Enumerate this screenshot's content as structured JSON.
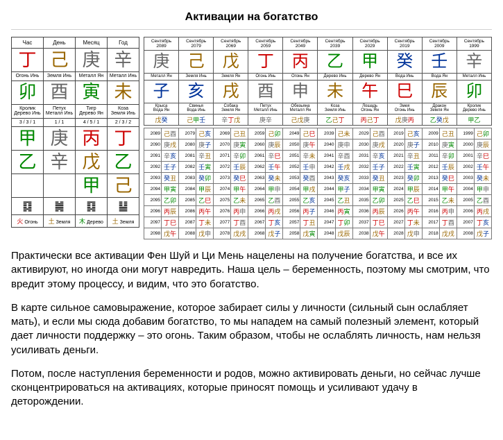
{
  "title": "Активации на богатство",
  "colors": {
    "fire": "#cc0000",
    "earth": "#996600",
    "metal": "#666666",
    "water": "#003399",
    "wood": "#008800",
    "purple": "#8800aa"
  },
  "bazi": {
    "headers": [
      "Час",
      "День",
      "Месяц",
      "Год"
    ],
    "row_stem": {
      "chars": [
        "丁",
        "己",
        "庚",
        "辛"
      ],
      "cols": [
        "fire",
        "earth",
        "metal",
        "metal"
      ]
    },
    "row_stem_lbl": [
      "Огонь Инь",
      "Земля Инь",
      "Металл Ян",
      "Металл Инь"
    ],
    "row_branch": {
      "chars": [
        "卯",
        "酉",
        "寅",
        "未"
      ],
      "cols": [
        "wood",
        "metal",
        "wood",
        "earth"
      ]
    },
    "row_branch_lbl": [
      "Кролик\nДерево Инь",
      "Петух\nМеталл Инь",
      "Тигр\nДерево Ян",
      "Коза\nЗемля Инь"
    ],
    "row_frac": [
      "3 / 3 / 1",
      "1 / 1",
      "4 / 5 / 1",
      "2 / 3 / 2"
    ],
    "row_hs": {
      "chars": [
        "甲",
        "庚",
        "丙",
        "丁"
      ],
      "cols": [
        "wood",
        "metal",
        "fire",
        "fire"
      ]
    },
    "row_hs2": {
      "chars": [
        "乙",
        "辛",
        "戊",
        "乙"
      ],
      "cols": [
        "wood",
        "metal",
        "earth",
        "wood"
      ]
    },
    "row_hs3": {
      "chars": [
        "",
        "",
        "甲",
        "己"
      ],
      "cols": [
        "",
        "",
        "wood",
        "earth"
      ]
    },
    "hexagrams": [
      "䷃",
      "䷛",
      "䷃",
      "䷊"
    ],
    "elements": [
      {
        "sym": "火",
        "txt": "Огонь",
        "col": "fire"
      },
      {
        "sym": "土",
        "txt": "Земля",
        "col": "earth"
      },
      {
        "sym": "木",
        "txt": "Дерево",
        "col": "wood"
      },
      {
        "sym": "土",
        "txt": "Земля",
        "col": "earth"
      }
    ]
  },
  "decades": {
    "cols": [
      {
        "month": "Сентябрь",
        "year": "2089",
        "stem": "庚",
        "sc": "metal",
        "sl": "Металл Ян",
        "branch": "子",
        "bc": "water",
        "bl": "Крыса\nВода Ян",
        "p": [
          [
            "戊",
            "earth"
          ],
          [
            "癸",
            "water"
          ]
        ]
      },
      {
        "month": "Сентябрь",
        "year": "2079",
        "stem": "己",
        "sc": "earth",
        "sl": "Земля Инь",
        "branch": "亥",
        "bc": "water",
        "bl": "Свинья\nВода Инь",
        "p": [
          [
            "己",
            "earth"
          ],
          [
            "甲",
            "wood"
          ],
          [
            "壬",
            "water"
          ]
        ]
      },
      {
        "month": "Сентябрь",
        "year": "2069",
        "stem": "戊",
        "sc": "earth",
        "sl": "Земля Ян",
        "branch": "戌",
        "bc": "earth",
        "bl": "Собака\nЗемля Ян",
        "p": [
          [
            "辛",
            "metal"
          ],
          [
            "丁",
            "fire"
          ],
          [
            "戊",
            "earth"
          ]
        ]
      },
      {
        "month": "Сентябрь",
        "year": "2059",
        "stem": "丁",
        "sc": "fire",
        "sl": "Огонь Инь",
        "branch": "酉",
        "bc": "metal",
        "bl": "Петух\nМеталл Инь",
        "p": [
          [
            "庚",
            "metal"
          ],
          [
            "辛",
            "metal"
          ]
        ]
      },
      {
        "month": "Сентябрь",
        "year": "2049",
        "stem": "丙",
        "sc": "fire",
        "sl": "Огонь Ян",
        "branch": "申",
        "bc": "metal",
        "bl": "Обезьяна\nМеталл Ян",
        "p": [
          [
            "己",
            "earth"
          ],
          [
            "戊",
            "earth"
          ],
          [
            "庚",
            "metal"
          ]
        ]
      },
      {
        "month": "Сентябрь",
        "year": "2039",
        "stem": "乙",
        "sc": "wood",
        "sl": "Дерево Инь",
        "branch": "未",
        "bc": "earth",
        "bl": "Коза\nЗемля Инь",
        "p": [
          [
            "乙",
            "wood"
          ],
          [
            "己",
            "earth"
          ],
          [
            "丁",
            "fire"
          ]
        ]
      },
      {
        "month": "Сентябрь",
        "year": "2029",
        "stem": "甲",
        "sc": "wood",
        "sl": "Дерево Ян",
        "branch": "午",
        "bc": "fire",
        "bl": "Лошадь\nОгонь Ян",
        "p": [
          [
            "丙",
            "fire"
          ],
          [
            "己",
            "earth"
          ],
          [
            "丁",
            "fire"
          ]
        ]
      },
      {
        "month": "Сентябрь",
        "year": "2019",
        "stem": "癸",
        "sc": "water",
        "sl": "Вода Инь",
        "branch": "巳",
        "bc": "fire",
        "bl": "Змея\nОгонь Инь",
        "p": [
          [
            "戊",
            "earth"
          ],
          [
            "庚",
            "metal"
          ],
          [
            "丙",
            "fire"
          ]
        ]
      },
      {
        "month": "Сентябрь",
        "year": "2009",
        "stem": "壬",
        "sc": "water",
        "sl": "Вода Ян",
        "branch": "辰",
        "bc": "earth",
        "bl": "Дракон\nЗемля Ян",
        "p": [
          [
            "乙",
            "wood"
          ],
          [
            "癸",
            "water"
          ],
          [
            "戊",
            "earth"
          ]
        ]
      },
      {
        "month": "Сентябрь",
        "year": "1999",
        "stem": "辛",
        "sc": "metal",
        "sl": "Металл Инь",
        "branch": "卯",
        "bc": "wood",
        "bl": "Кролик\nДерево Инь",
        "p": [
          [
            "甲",
            "wood"
          ],
          [
            "乙",
            "wood"
          ]
        ]
      }
    ]
  },
  "years_grid": {
    "start_year": 2089,
    "rows": 10,
    "cols": 10,
    "cells": [
      [
        [
          "己",
          "earth",
          "酉",
          "metal"
        ],
        [
          "己",
          "earth",
          "亥",
          "water"
        ],
        [
          "己",
          "earth",
          "丑",
          "earth"
        ],
        [
          "己",
          "earth",
          "卯",
          "wood"
        ],
        [
          "己",
          "earth",
          "巳",
          "fire"
        ],
        [
          "己",
          "earth",
          "未",
          "earth"
        ],
        [
          "己",
          "earth",
          "酉",
          "metal"
        ],
        [
          "己",
          "earth",
          "亥",
          "water"
        ],
        [
          "己",
          "earth",
          "丑",
          "earth"
        ],
        [
          "己",
          "earth",
          "卯",
          "wood"
        ]
      ],
      [
        [
          "庚",
          "metal",
          "戌",
          "earth"
        ],
        [
          "庚",
          "metal",
          "子",
          "water"
        ],
        [
          "庚",
          "metal",
          "寅",
          "wood"
        ],
        [
          "庚",
          "metal",
          "辰",
          "earth"
        ],
        [
          "庚",
          "metal",
          "午",
          "fire"
        ],
        [
          "庚",
          "metal",
          "申",
          "metal"
        ],
        [
          "庚",
          "metal",
          "戌",
          "earth"
        ],
        [
          "庚",
          "metal",
          "子",
          "water"
        ],
        [
          "庚",
          "metal",
          "寅",
          "wood"
        ],
        [
          "庚",
          "metal",
          "辰",
          "earth"
        ]
      ],
      [
        [
          "辛",
          "metal",
          "亥",
          "water"
        ],
        [
          "辛",
          "metal",
          "丑",
          "earth"
        ],
        [
          "辛",
          "metal",
          "卯",
          "wood"
        ],
        [
          "辛",
          "metal",
          "巳",
          "fire"
        ],
        [
          "辛",
          "metal",
          "未",
          "earth"
        ],
        [
          "辛",
          "metal",
          "酉",
          "metal"
        ],
        [
          "辛",
          "metal",
          "亥",
          "water"
        ],
        [
          "辛",
          "metal",
          "丑",
          "earth"
        ],
        [
          "辛",
          "metal",
          "卯",
          "wood"
        ],
        [
          "辛",
          "metal",
          "巳",
          "fire"
        ]
      ],
      [
        [
          "壬",
          "water",
          "子",
          "water"
        ],
        [
          "壬",
          "water",
          "寅",
          "wood"
        ],
        [
          "壬",
          "water",
          "辰",
          "earth"
        ],
        [
          "壬",
          "water",
          "午",
          "fire"
        ],
        [
          "壬",
          "water",
          "申",
          "metal"
        ],
        [
          "壬",
          "water",
          "戌",
          "earth"
        ],
        [
          "壬",
          "water",
          "子",
          "water"
        ],
        [
          "壬",
          "water",
          "寅",
          "wood"
        ],
        [
          "壬",
          "water",
          "辰",
          "earth"
        ],
        [
          "壬",
          "water",
          "午",
          "fire"
        ]
      ],
      [
        [
          "癸",
          "water",
          "丑",
          "earth"
        ],
        [
          "癸",
          "water",
          "卯",
          "wood"
        ],
        [
          "癸",
          "water",
          "巳",
          "fire"
        ],
        [
          "癸",
          "water",
          "未",
          "earth"
        ],
        [
          "癸",
          "water",
          "酉",
          "metal"
        ],
        [
          "癸",
          "water",
          "亥",
          "water"
        ],
        [
          "癸",
          "water",
          "丑",
          "earth"
        ],
        [
          "癸",
          "water",
          "卯",
          "wood"
        ],
        [
          "癸",
          "water",
          "巳",
          "fire"
        ],
        [
          "癸",
          "water",
          "未",
          "earth"
        ]
      ],
      [
        [
          "甲",
          "wood",
          "寅",
          "wood"
        ],
        [
          "甲",
          "wood",
          "辰",
          "earth"
        ],
        [
          "甲",
          "wood",
          "午",
          "fire"
        ],
        [
          "甲",
          "wood",
          "申",
          "metal"
        ],
        [
          "甲",
          "wood",
          "戌",
          "earth"
        ],
        [
          "甲",
          "wood",
          "子",
          "water"
        ],
        [
          "甲",
          "wood",
          "寅",
          "wood"
        ],
        [
          "甲",
          "wood",
          "辰",
          "earth"
        ],
        [
          "甲",
          "wood",
          "午",
          "fire"
        ],
        [
          "甲",
          "wood",
          "申",
          "metal"
        ]
      ],
      [
        [
          "乙",
          "wood",
          "卯",
          "wood"
        ],
        [
          "乙",
          "wood",
          "巳",
          "fire"
        ],
        [
          "乙",
          "wood",
          "未",
          "earth"
        ],
        [
          "乙",
          "wood",
          "酉",
          "metal"
        ],
        [
          "乙",
          "wood",
          "亥",
          "water"
        ],
        [
          "乙",
          "wood",
          "丑",
          "earth"
        ],
        [
          "乙",
          "wood",
          "卯",
          "wood"
        ],
        [
          "乙",
          "wood",
          "巳",
          "fire"
        ],
        [
          "乙",
          "wood",
          "未",
          "earth"
        ],
        [
          "乙",
          "wood",
          "酉",
          "metal"
        ]
      ],
      [
        [
          "丙",
          "fire",
          "辰",
          "earth"
        ],
        [
          "丙",
          "fire",
          "午",
          "fire"
        ],
        [
          "丙",
          "fire",
          "申",
          "metal"
        ],
        [
          "丙",
          "fire",
          "戌",
          "earth"
        ],
        [
          "丙",
          "fire",
          "子",
          "water"
        ],
        [
          "丙",
          "fire",
          "寅",
          "wood"
        ],
        [
          "丙",
          "fire",
          "辰",
          "earth"
        ],
        [
          "丙",
          "fire",
          "午",
          "fire"
        ],
        [
          "丙",
          "fire",
          "申",
          "metal"
        ],
        [
          "丙",
          "fire",
          "戌",
          "earth"
        ]
      ],
      [
        [
          "丁",
          "fire",
          "巳",
          "fire"
        ],
        [
          "丁",
          "fire",
          "未",
          "earth"
        ],
        [
          "丁",
          "fire",
          "酉",
          "metal"
        ],
        [
          "丁",
          "fire",
          "亥",
          "water"
        ],
        [
          "丁",
          "fire",
          "丑",
          "earth"
        ],
        [
          "丁",
          "fire",
          "卯",
          "wood"
        ],
        [
          "丁",
          "fire",
          "巳",
          "fire"
        ],
        [
          "丁",
          "fire",
          "未",
          "earth"
        ],
        [
          "丁",
          "fire",
          "酉",
          "metal"
        ],
        [
          "丁",
          "fire",
          "亥",
          "water"
        ]
      ],
      [
        [
          "戊",
          "earth",
          "午",
          "fire"
        ],
        [
          "戊",
          "earth",
          "申",
          "metal"
        ],
        [
          "戊",
          "earth",
          "戌",
          "earth"
        ],
        [
          "戊",
          "earth",
          "子",
          "water"
        ],
        [
          "戊",
          "earth",
          "寅",
          "wood"
        ],
        [
          "戊",
          "earth",
          "辰",
          "earth"
        ],
        [
          "戊",
          "earth",
          "午",
          "fire"
        ],
        [
          "戊",
          "earth",
          "申",
          "metal"
        ],
        [
          "戊",
          "earth",
          "戌",
          "earth"
        ],
        [
          "戊",
          "earth",
          "子",
          "water"
        ]
      ]
    ]
  },
  "paragraphs": [
    "Практически все активации Фен Шуй и Ци Мень нацелены на получение богатства, и все их активируют, но иногда они могут навредить. Наша цель – беременность, поэтому мы смотрим, что вредит этому процессу, и видим, что это богатство.",
    "В карте сильное самовыражение, которое забирает силы у личности (сильный сын ослабляет мать), и если мы сюда добавим богатство, то мы нападем на самый полезный элемент, который дает личности поддержку – это огонь. Таким образом, чтобы не ослаблять личность, нам нельзя усиливать деньги.",
    "Потом, после наступления беременности и родов, можно активировать деньги, но сейчас лучше сконцентрироваться на активациях, которые приносят помощь и усиливают удачу в деторождении."
  ]
}
